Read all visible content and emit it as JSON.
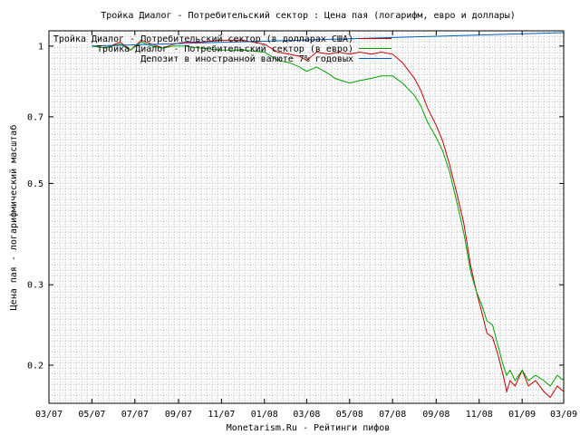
{
  "chart_data": {
    "type": "line",
    "title": "Тройка Диалог - Потребительский сектор : Цена пая (логарифм, евро и доллары)",
    "xlabel": "Monetarism.Ru - Рейтинги пифов",
    "ylabel": "Цена пая - логарифмический масштаб",
    "y_scale": "log",
    "ylim": [
      0.165,
      1.08
    ],
    "yticks": [
      0.2,
      0.3,
      0.5,
      0.7,
      1
    ],
    "ytick_labels": [
      "0.2",
      "0.3",
      "0.5",
      "0.7",
      "1"
    ],
    "xlim": [
      "2007-03",
      "2009-03"
    ],
    "xticks": [
      "2007-03",
      "2007-05",
      "2007-07",
      "2007-09",
      "2007-11",
      "2008-01",
      "2008-03",
      "2008-05",
      "2008-07",
      "2008-09",
      "2008-11",
      "2009-01",
      "2009-03"
    ],
    "xtick_labels": [
      "03/07",
      "05/07",
      "07/07",
      "09/07",
      "11/07",
      "01/08",
      "03/08",
      "05/08",
      "07/08",
      "09/08",
      "11/08",
      "01/09",
      "03/09"
    ],
    "grid": true,
    "legend_position": "top-left",
    "series": [
      {
        "name": "Тройка Диалог - Потребительский сектор (в долларах США)",
        "color": "#c00000",
        "points": [
          [
            "2007-05-01",
            1.0
          ],
          [
            "2007-05-20",
            0.99
          ],
          [
            "2007-06-10",
            1.02
          ],
          [
            "2007-06-25",
            0.98
          ],
          [
            "2007-07-10",
            1.03
          ],
          [
            "2007-07-25",
            1.01
          ],
          [
            "2007-08-10",
            0.99
          ],
          [
            "2007-08-25",
            1.01
          ],
          [
            "2007-09-10",
            1.02
          ],
          [
            "2007-10-01",
            1.02
          ],
          [
            "2007-11-01",
            1.03
          ],
          [
            "2007-12-01",
            1.03
          ],
          [
            "2008-01-01",
            1.01
          ],
          [
            "2008-01-20",
            0.97
          ],
          [
            "2008-02-05",
            0.96
          ],
          [
            "2008-02-20",
            0.95
          ],
          [
            "2008-03-01",
            0.93
          ],
          [
            "2008-03-15",
            0.97
          ],
          [
            "2008-04-01",
            0.96
          ],
          [
            "2008-04-15",
            0.97
          ],
          [
            "2008-05-01",
            0.96
          ],
          [
            "2008-05-15",
            0.97
          ],
          [
            "2008-06-01",
            0.96
          ],
          [
            "2008-06-15",
            0.97
          ],
          [
            "2008-07-01",
            0.96
          ],
          [
            "2008-07-15",
            0.92
          ],
          [
            "2008-08-01",
            0.85
          ],
          [
            "2008-08-10",
            0.8
          ],
          [
            "2008-08-20",
            0.73
          ],
          [
            "2008-09-01",
            0.67
          ],
          [
            "2008-09-10",
            0.62
          ],
          [
            "2008-09-20",
            0.55
          ],
          [
            "2008-10-01",
            0.47
          ],
          [
            "2008-10-10",
            0.41
          ],
          [
            "2008-10-20",
            0.33
          ],
          [
            "2008-10-28",
            0.29
          ],
          [
            "2008-11-05",
            0.26
          ],
          [
            "2008-11-12",
            0.235
          ],
          [
            "2008-11-20",
            0.23
          ],
          [
            "2008-11-28",
            0.21
          ],
          [
            "2008-12-05",
            0.19
          ],
          [
            "2008-12-10",
            0.175
          ],
          [
            "2008-12-15",
            0.185
          ],
          [
            "2008-12-22",
            0.18
          ],
          [
            "2009-01-01",
            0.195
          ],
          [
            "2009-01-10",
            0.18
          ],
          [
            "2009-01-20",
            0.185
          ],
          [
            "2009-02-01",
            0.175
          ],
          [
            "2009-02-10",
            0.17
          ],
          [
            "2009-02-20",
            0.18
          ],
          [
            "2009-03-01",
            0.175
          ]
        ]
      },
      {
        "name": "Тройка Диалог - Потребительский сектор (в евро)",
        "color": "#00a000",
        "points": [
          [
            "2007-05-01",
            1.0
          ],
          [
            "2007-05-20",
            0.99
          ],
          [
            "2007-06-10",
            1.01
          ],
          [
            "2007-06-25",
            0.98
          ],
          [
            "2007-07-10",
            1.02
          ],
          [
            "2007-07-25",
            1.0
          ],
          [
            "2007-08-10",
            0.99
          ],
          [
            "2007-08-25",
            1.0
          ],
          [
            "2007-09-10",
            1.0
          ],
          [
            "2007-10-01",
            0.99
          ],
          [
            "2007-11-01",
            0.98
          ],
          [
            "2007-12-01",
            0.98
          ],
          [
            "2008-01-01",
            0.97
          ],
          [
            "2008-01-20",
            0.93
          ],
          [
            "2008-02-05",
            0.92
          ],
          [
            "2008-02-20",
            0.9
          ],
          [
            "2008-03-01",
            0.88
          ],
          [
            "2008-03-15",
            0.9
          ],
          [
            "2008-04-01",
            0.87
          ],
          [
            "2008-04-10",
            0.85
          ],
          [
            "2008-04-20",
            0.84
          ],
          [
            "2008-05-01",
            0.83
          ],
          [
            "2008-05-15",
            0.84
          ],
          [
            "2008-06-01",
            0.85
          ],
          [
            "2008-06-15",
            0.86
          ],
          [
            "2008-07-01",
            0.86
          ],
          [
            "2008-07-15",
            0.83
          ],
          [
            "2008-08-01",
            0.78
          ],
          [
            "2008-08-10",
            0.74
          ],
          [
            "2008-08-20",
            0.68
          ],
          [
            "2008-09-01",
            0.63
          ],
          [
            "2008-09-10",
            0.59
          ],
          [
            "2008-09-20",
            0.53
          ],
          [
            "2008-10-01",
            0.45
          ],
          [
            "2008-10-10",
            0.39
          ],
          [
            "2008-10-20",
            0.32
          ],
          [
            "2008-10-28",
            0.29
          ],
          [
            "2008-11-05",
            0.27
          ],
          [
            "2008-11-12",
            0.25
          ],
          [
            "2008-11-20",
            0.245
          ],
          [
            "2008-11-28",
            0.22
          ],
          [
            "2008-12-05",
            0.2
          ],
          [
            "2008-12-10",
            0.19
          ],
          [
            "2008-12-15",
            0.195
          ],
          [
            "2008-12-22",
            0.185
          ],
          [
            "2009-01-01",
            0.195
          ],
          [
            "2009-01-10",
            0.185
          ],
          [
            "2009-01-20",
            0.19
          ],
          [
            "2009-02-01",
            0.185
          ],
          [
            "2009-02-10",
            0.18
          ],
          [
            "2009-02-20",
            0.19
          ],
          [
            "2009-03-01",
            0.185
          ]
        ]
      },
      {
        "name": "Депозит в иностранной валюте 7% годовых",
        "color": "#0060c0",
        "points": [
          [
            "2007-05-01",
            1.0
          ],
          [
            "2009-03-01",
            1.07
          ]
        ]
      }
    ]
  }
}
